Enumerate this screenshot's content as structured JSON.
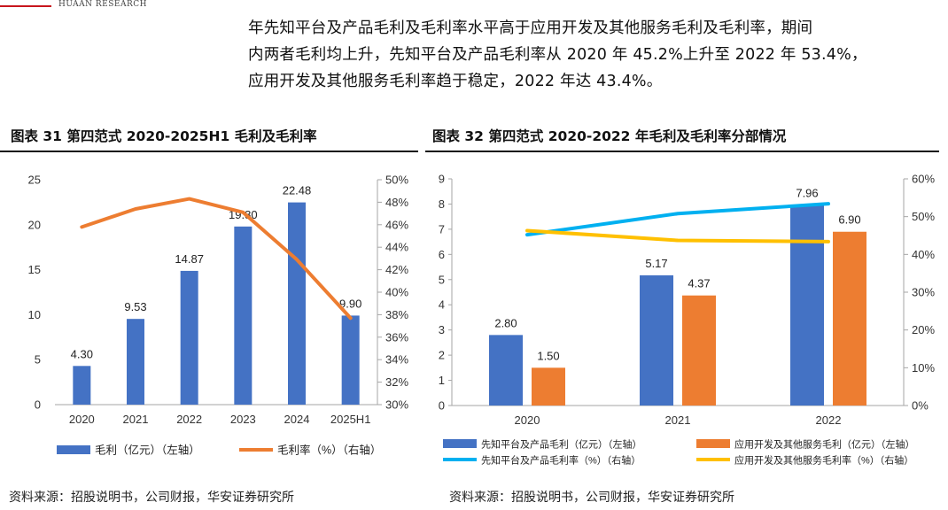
{
  "header": {
    "logo_text": "HUAAN RESEARCH"
  },
  "intro": {
    "lines": [
      "年先知平台及产品毛利及毛利率水平高于应用开发及其他服务毛利及毛利率，期间",
      "内两者毛利均上升，先知平台及产品毛利率从 2020 年 45.2%上升至 2022 年 53.4%，",
      "应用开发及其他服务毛利率趋于稳定，2022 年达 43.4%。"
    ]
  },
  "figure31": {
    "title": "图表  31  第四范式 2020-2025H1 毛利及毛利率",
    "source": "资料来源：招股说明书，公司财报，华安证券研究所"
  },
  "figure32": {
    "title": "图表  32  第四范式 2020-2022 年毛利及毛利率分部情况",
    "source": "资料来源：招股说明书，公司财报，华安证券研究所"
  },
  "chart_data": [
    {
      "type": "bar",
      "categories": [
        "2020",
        "2021",
        "2022",
        "2023",
        "2024",
        "2025H1"
      ],
      "series": [
        {
          "name": "毛利（亿元）（左轴）",
          "kind": "bar",
          "axis": "left",
          "color": "#4472C4",
          "values": [
            4.3,
            9.53,
            14.87,
            19.8,
            22.48,
            9.9
          ],
          "labels": [
            "4.30",
            "9.53",
            "14.87",
            "19.80",
            "22.48",
            "9.90"
          ]
        },
        {
          "name": "毛利率（%）（右轴）",
          "kind": "line",
          "axis": "right",
          "color": "#ED7D31",
          "values": [
            45.8,
            47.4,
            48.3,
            47.1,
            42.9,
            37.7
          ]
        }
      ],
      "left_axis": {
        "ylim": [
          0,
          25
        ],
        "ticks": [
          "0",
          "5",
          "10",
          "15",
          "20",
          "25"
        ]
      },
      "right_axis": {
        "ylim": [
          30,
          50
        ],
        "ticks": [
          "30%",
          "32%",
          "34%",
          "36%",
          "38%",
          "40%",
          "42%",
          "44%",
          "46%",
          "48%",
          "50%"
        ]
      },
      "legend_position": "bottom",
      "grid": false
    },
    {
      "type": "bar",
      "categories": [
        "2020",
        "2021",
        "2022"
      ],
      "series": [
        {
          "name": "先知平台及产品毛利（亿元）（左轴）",
          "kind": "bar",
          "axis": "left",
          "color": "#4472C4",
          "values": [
            2.8,
            5.17,
            7.96
          ],
          "labels": [
            "2.80",
            "5.17",
            "7.96"
          ]
        },
        {
          "name": "应用开发及其他服务毛利（亿元）（左轴）",
          "kind": "bar",
          "axis": "left",
          "color": "#ED7D31",
          "values": [
            1.5,
            4.37,
            6.9
          ],
          "labels": [
            "1.50",
            "4.37",
            "6.90"
          ]
        },
        {
          "name": "先知平台及产品毛利率（%）（右轴）",
          "kind": "line",
          "axis": "right",
          "color": "#00B0F0",
          "values": [
            45.2,
            50.8,
            53.4
          ]
        },
        {
          "name": "应用开发及其他服务毛利率（%）（右轴）",
          "kind": "line",
          "axis": "right",
          "color": "#FFC000",
          "values": [
            46.3,
            43.7,
            43.4
          ]
        }
      ],
      "left_axis": {
        "ylim": [
          0,
          9
        ],
        "ticks": [
          "0",
          "1",
          "2",
          "3",
          "4",
          "5",
          "6",
          "7",
          "8",
          "9"
        ]
      },
      "right_axis": {
        "ylim": [
          0,
          60
        ],
        "ticks": [
          "0%",
          "10%",
          "20%",
          "30%",
          "40%",
          "50%",
          "60%"
        ]
      },
      "legend_position": "bottom",
      "grid": false
    }
  ]
}
